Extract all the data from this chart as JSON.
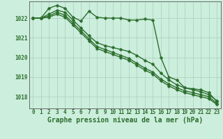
{
  "title": "Graphe pression niveau de la mer (hPa)",
  "bg_color": "#cceedd",
  "grid_color": "#aaccbb",
  "line_color": "#2d6e2d",
  "marker_color": "#2d6e2d",
  "xlim": [
    -0.5,
    23.5
  ],
  "ylim": [
    1017.4,
    1022.85
  ],
  "yticks": [
    1018,
    1019,
    1020,
    1021,
    1022
  ],
  "xticks": [
    0,
    1,
    2,
    3,
    4,
    5,
    6,
    7,
    8,
    9,
    10,
    11,
    12,
    13,
    14,
    15,
    16,
    17,
    18,
    19,
    20,
    21,
    22,
    23
  ],
  "series1": [
    1022.0,
    1022.0,
    1022.5,
    1022.65,
    1022.5,
    1022.05,
    1021.85,
    1022.35,
    1022.05,
    1022.0,
    1022.0,
    1022.0,
    1021.9,
    1021.9,
    1021.95,
    1021.9,
    1020.0,
    1019.0,
    1018.85,
    1018.45,
    1018.4,
    1018.35,
    1018.2,
    1017.75
  ],
  "series2": [
    1022.0,
    1022.0,
    1022.2,
    1022.4,
    1022.3,
    1021.9,
    1021.5,
    1021.1,
    1020.75,
    1020.6,
    1020.5,
    1020.4,
    1020.3,
    1020.1,
    1019.85,
    1019.65,
    1019.2,
    1018.85,
    1018.6,
    1018.45,
    1018.35,
    1018.25,
    1018.1,
    1017.8
  ],
  "series3": [
    1022.0,
    1022.0,
    1022.1,
    1022.3,
    1022.15,
    1021.75,
    1021.35,
    1020.95,
    1020.55,
    1020.4,
    1020.25,
    1020.1,
    1019.95,
    1019.7,
    1019.45,
    1019.25,
    1018.9,
    1018.65,
    1018.45,
    1018.3,
    1018.2,
    1018.1,
    1018.0,
    1017.65
  ],
  "series4": [
    1022.0,
    1022.0,
    1022.05,
    1022.2,
    1022.05,
    1021.65,
    1021.25,
    1020.85,
    1020.45,
    1020.3,
    1020.15,
    1020.0,
    1019.85,
    1019.6,
    1019.35,
    1019.15,
    1018.8,
    1018.55,
    1018.35,
    1018.2,
    1018.1,
    1018.0,
    1017.9,
    1017.6
  ],
  "marker_size": 2.5,
  "line_width": 1.0,
  "tick_fontsize": 5.5,
  "title_fontsize": 7.0
}
